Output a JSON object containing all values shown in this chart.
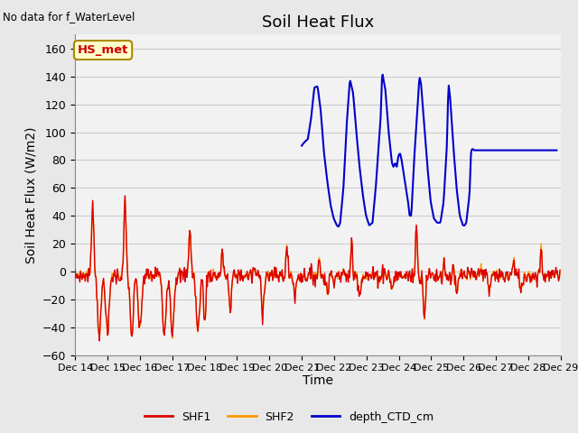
{
  "title": "Soil Heat Flux",
  "subtitle": "No data for f_WaterLevel",
  "xlabel": "Time",
  "ylabel": "Soil Heat Flux (W/m2)",
  "ylim": [
    -60,
    170
  ],
  "yticks": [
    -60,
    -40,
    -20,
    0,
    20,
    40,
    60,
    80,
    100,
    120,
    140,
    160
  ],
  "shf1_color": "#dd0000",
  "shf2_color": "#ff9900",
  "ctd_color": "#0000cc",
  "fig_bg": "#e8e8e8",
  "plot_bg": "#f2f2f2",
  "grid_color": "#cccccc",
  "legend_labels": [
    "SHF1",
    "SHF2",
    "depth_CTD_cm"
  ],
  "hs_met_label": "HS_met",
  "hs_met_bg": "#ffffcc",
  "hs_met_border": "#aa8800",
  "hs_met_text_color": "#cc0000",
  "title_fontsize": 13,
  "axis_fontsize": 9,
  "label_fontsize": 10
}
